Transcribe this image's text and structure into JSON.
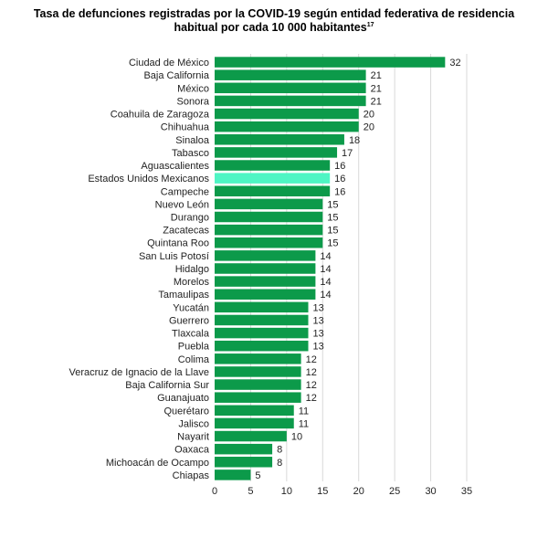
{
  "chart_data": {
    "type": "bar",
    "orientation": "horizontal",
    "title_line1": "Tasa de defunciones registradas por la COVID-19 según entidad federativa de residencia",
    "title_line2": "habitual por cada 10 000 habitantes",
    "title_superscript": "17",
    "categories": [
      "Ciudad de México",
      "Baja California",
      "México",
      "Sonora",
      "Coahuila de Zaragoza",
      "Chihuahua",
      "Sinaloa",
      "Tabasco",
      "Aguascalientes",
      "Estados Unidos Mexicanos",
      "Campeche",
      "Nuevo León",
      "Durango",
      "Zacatecas",
      "Quintana Roo",
      "San Luis Potosí",
      "Hidalgo",
      "Morelos",
      "Tamaulipas",
      "Yucatán",
      "Guerrero",
      "Tlaxcala",
      "Puebla",
      "Colima",
      "Veracruz de Ignacio de la Llave",
      "Baja California Sur",
      "Guanajuato",
      "Querétaro",
      "Jalisco",
      "Nayarit",
      "Oaxaca",
      "Michoacán de Ocampo",
      "Chiapas"
    ],
    "values": [
      32,
      21,
      21,
      21,
      20,
      20,
      18,
      17,
      16,
      16,
      16,
      15,
      15,
      15,
      15,
      14,
      14,
      14,
      14,
      13,
      13,
      13,
      13,
      12,
      12,
      12,
      12,
      11,
      11,
      10,
      8,
      8,
      5
    ],
    "highlight_category": "Estados Unidos Mexicanos",
    "xlim": [
      0,
      35
    ],
    "xticks": [
      0,
      5,
      10,
      15,
      20,
      25,
      30,
      35
    ],
    "grid": "vertical",
    "colors": {
      "bar": "#0c9a4a",
      "highlight": "#4ff5c4",
      "grid": "#d9d9d9"
    }
  }
}
